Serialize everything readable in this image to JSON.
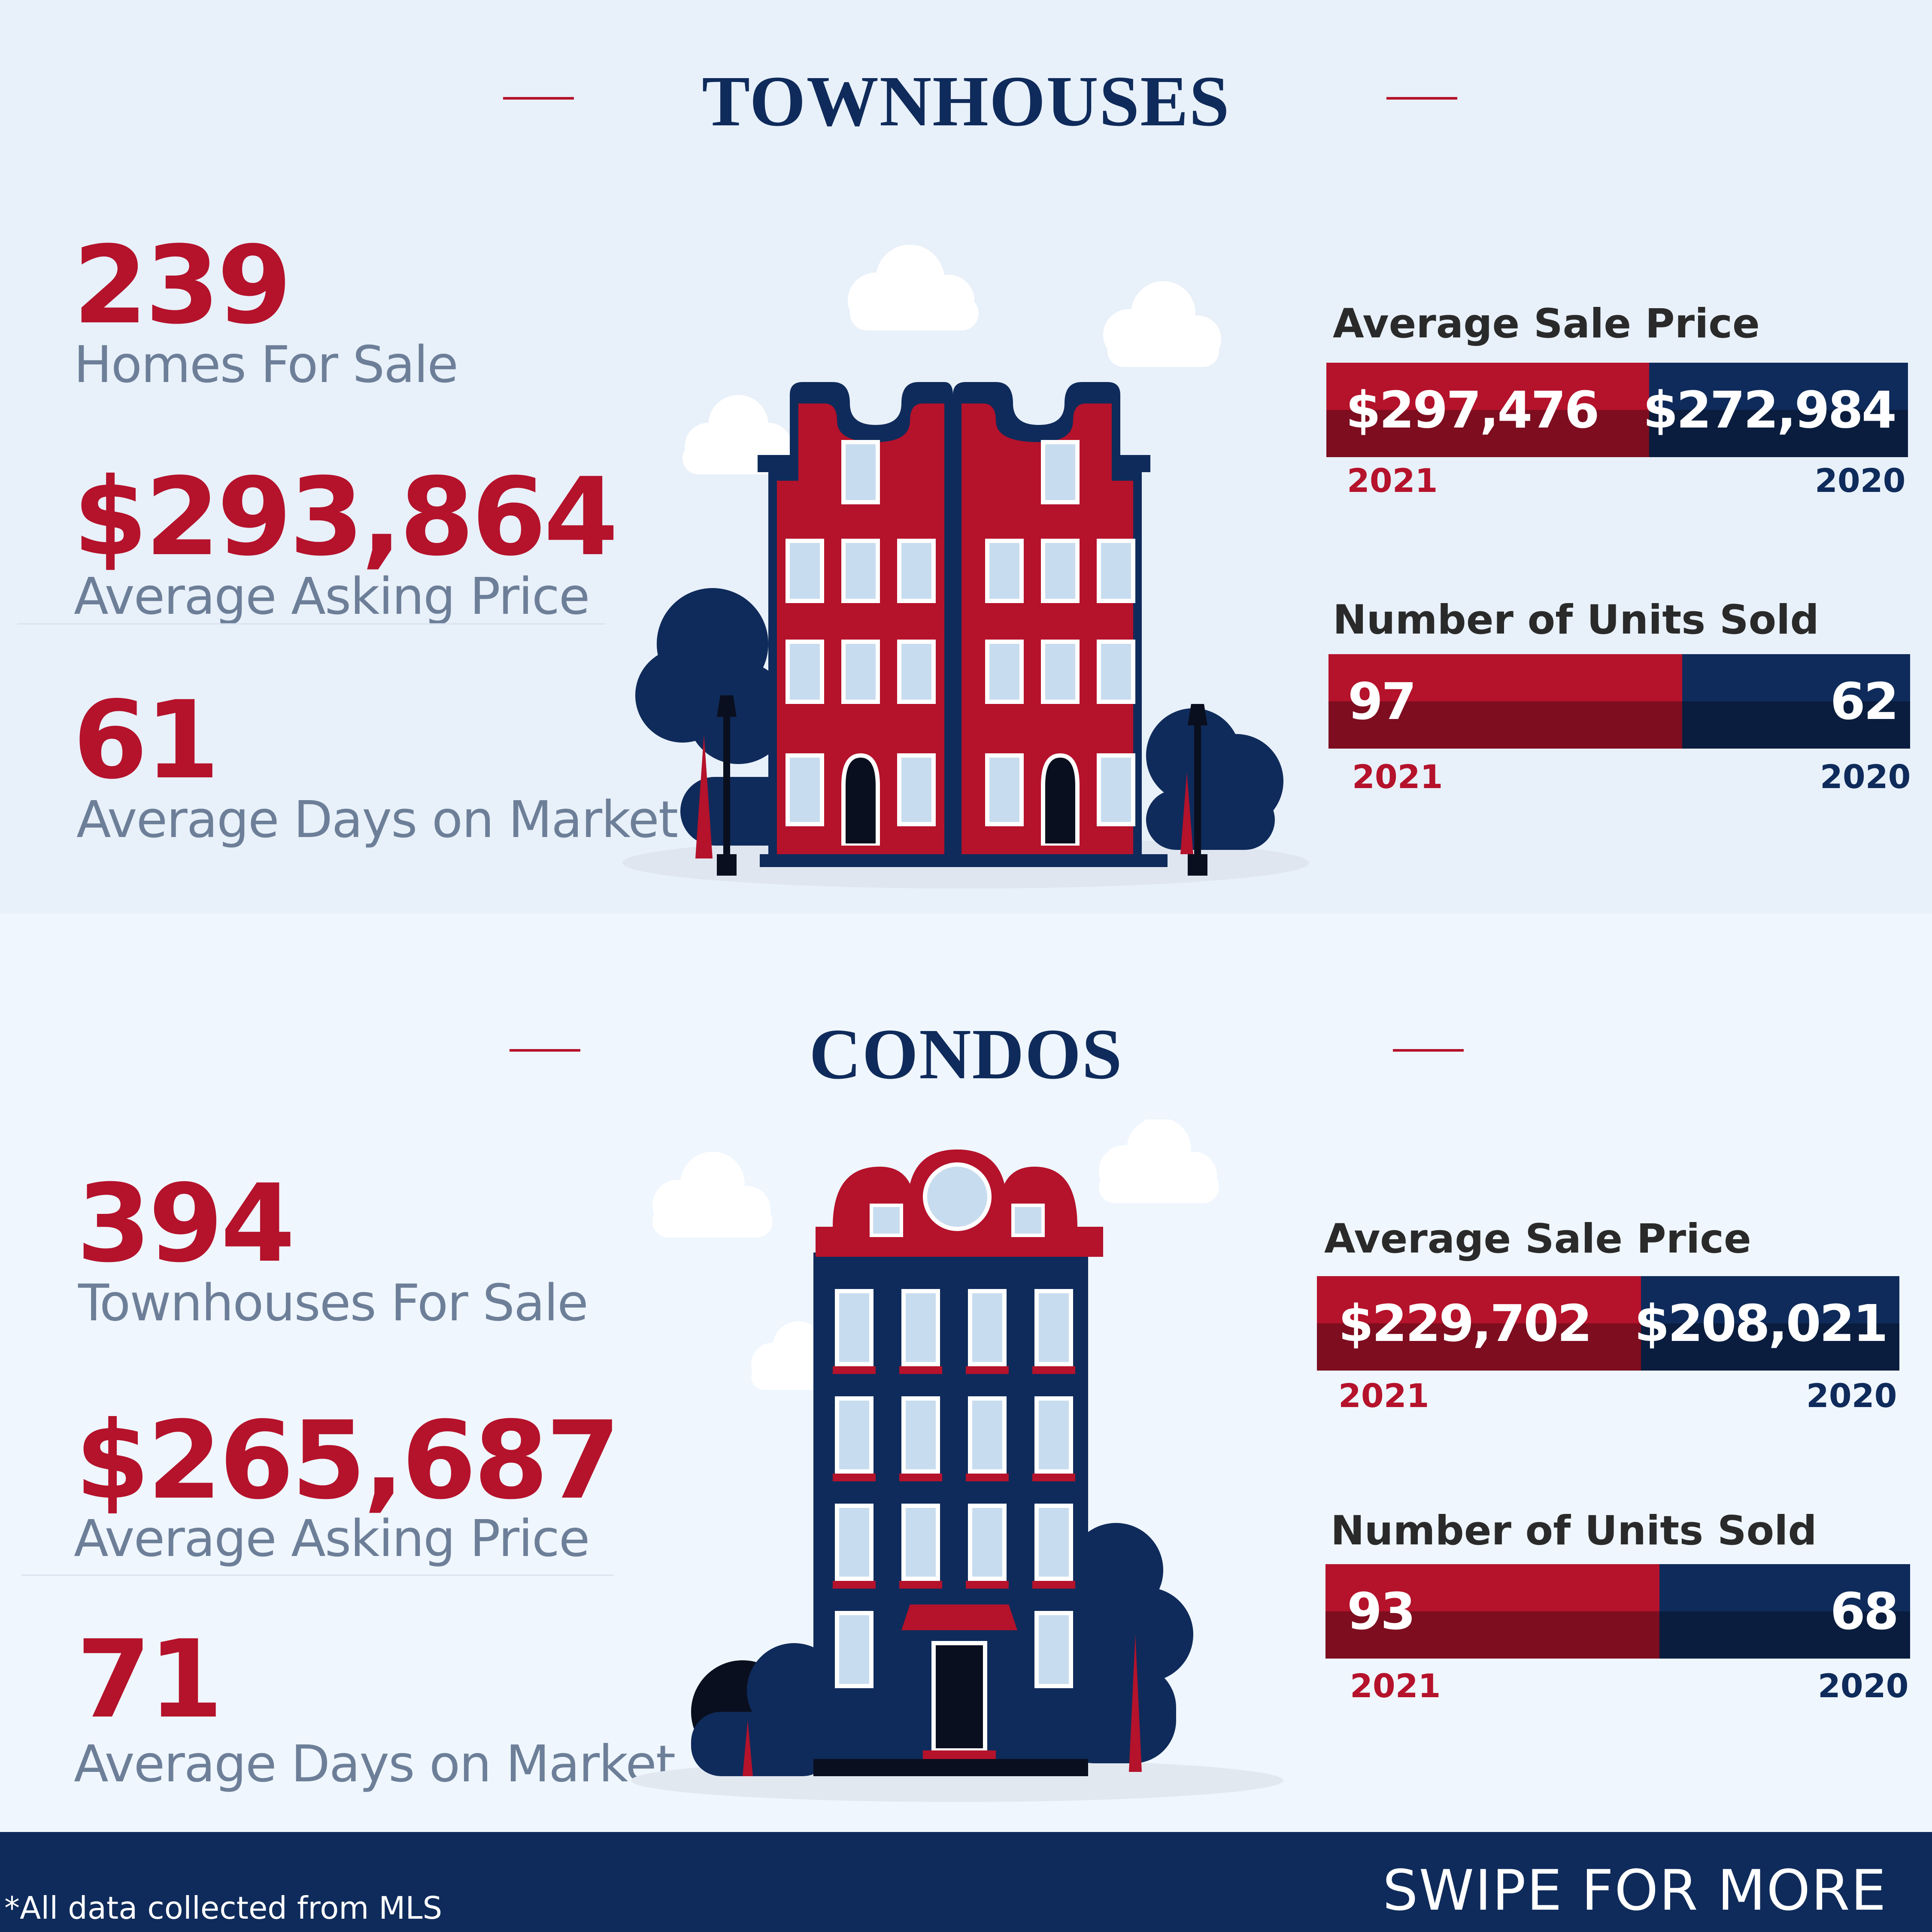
{
  "colors": {
    "red": "#b5122b",
    "navy": "#0f2b5b",
    "label_gray": "#6d7f98"
  },
  "townhouses": {
    "title": "TOWNHOUSES",
    "stats": [
      {
        "value": "239",
        "label": "Homes For Sale"
      },
      {
        "value": "$293,864",
        "label": "Average Asking Price"
      },
      {
        "value": "61",
        "label": "Average Days on Market"
      }
    ],
    "avg_sale_price": {
      "title": "Average Sale Price",
      "current_value": "$297,476",
      "previous_value": "$272,984",
      "current_year": "2021",
      "previous_year": "2020"
    },
    "units_sold": {
      "title": "Number of Units Sold",
      "current_value": "97",
      "previous_value": "62",
      "current_year": "2021",
      "previous_year": "2020"
    },
    "illustration": "townhouse-building-icon"
  },
  "condos": {
    "title": "CONDOS",
    "stats": [
      {
        "value": "394",
        "label": "Townhouses For Sale"
      },
      {
        "value": "$265,687",
        "label": "Average Asking Price"
      },
      {
        "value": "71",
        "label": "Average Days on Market"
      }
    ],
    "avg_sale_price": {
      "title": "Average Sale Price",
      "current_value": "$229,702",
      "previous_value": "$208,021",
      "current_year": "2021",
      "previous_year": "2020"
    },
    "units_sold": {
      "title": "Number of Units Sold",
      "current_value": "93",
      "previous_value": "68",
      "current_year": "2021",
      "previous_year": "2020"
    },
    "illustration": "condo-building-icon"
  },
  "footer": {
    "note": "*All data collected from MLS",
    "cta": "SWIPE FOR MORE"
  }
}
